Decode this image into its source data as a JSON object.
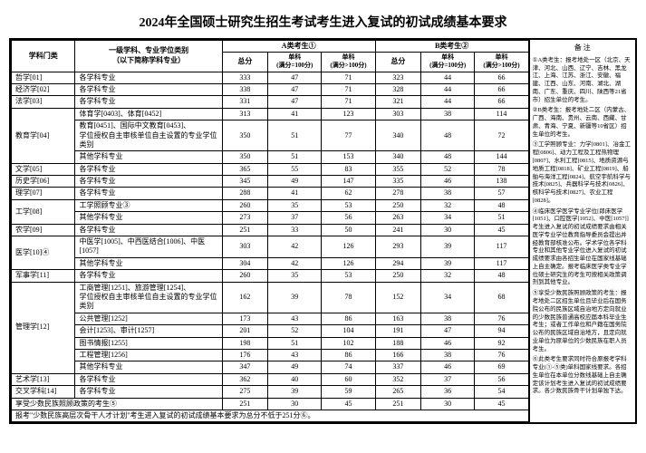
{
  "title": "2024年全国硕士研究生招生考试考生进入复试的初试成绩基本要求",
  "header": {
    "col_category": "学科门类",
    "col_major": "一级学科、专业学位类别\n（以下简称学科专业）",
    "groupA": "A类考生①",
    "groupB": "B类考生②",
    "total": "总分",
    "single1": "单科\n(满分=100分)",
    "single2": "单科\n(满分>100分)",
    "remarks": "备 注"
  },
  "rows": [
    {
      "cat": "哲学[01]",
      "major": "各学科专业",
      "a": [
        333,
        47,
        71
      ],
      "b": [
        323,
        44,
        66
      ]
    },
    {
      "cat": "经济学[02]",
      "major": "各学科专业",
      "a": [
        338,
        47,
        71
      ],
      "b": [
        328,
        44,
        66
      ]
    },
    {
      "cat": "法学[03]",
      "major": "各学科专业",
      "a": [
        331,
        47,
        71
      ],
      "b": [
        321,
        44,
        66
      ]
    },
    {
      "cat": "教育学[04]",
      "sub": [
        {
          "major": "体育学[0403]、体育[0452]",
          "a": [
            313,
            41,
            123
          ],
          "b": [
            303,
            38,
            114
          ]
        },
        {
          "major": "教育[0451]、国际中文教育[0453]、\n学位授权自主审核单位自主设置的专业学位类别",
          "a": [
            350,
            51,
            77
          ],
          "b": [
            340,
            48,
            72
          ]
        },
        {
          "major": "其他学科专业",
          "a": [
            350,
            51,
            153
          ],
          "b": [
            340,
            48,
            144
          ]
        }
      ]
    },
    {
      "cat": "文学[05]",
      "major": "各学科专业",
      "a": [
        365,
        55,
        83
      ],
      "b": [
        355,
        52,
        78
      ]
    },
    {
      "cat": "历史学[06]",
      "major": "各学科专业",
      "a": [
        345,
        49,
        147
      ],
      "b": [
        335,
        46,
        138
      ]
    },
    {
      "cat": "理学[07]",
      "major": "各学科专业",
      "a": [
        288,
        41,
        62
      ],
      "b": [
        278,
        38,
        57
      ]
    },
    {
      "cat": "工学[08]",
      "sub": [
        {
          "major": "工学照顾专业③",
          "a": [
            260,
            35,
            53
          ],
          "b": [
            250,
            32,
            48
          ]
        },
        {
          "major": "其他学科专业",
          "a": [
            273,
            37,
            56
          ],
          "b": [
            263,
            34,
            51
          ]
        }
      ]
    },
    {
      "cat": "农学[09]",
      "major": "各学科专业",
      "a": [
        251,
        33,
        50
      ],
      "b": [
        241,
        30,
        45
      ]
    },
    {
      "cat": "医学[10]④",
      "sub": [
        {
          "major": "中医学[1005]、中西医结合[1006]、中医[1057]",
          "a": [
            303,
            42,
            126
          ],
          "b": [
            293,
            39,
            117
          ]
        },
        {
          "major": "其他学科专业",
          "a": [
            304,
            42,
            126
          ],
          "b": [
            294,
            39,
            117
          ]
        }
      ]
    },
    {
      "cat": "军事学[11]",
      "major": "各学科专业",
      "a": [
        260,
        35,
        53
      ],
      "b": [
        250,
        32,
        48
      ]
    },
    {
      "cat": "管理学[12]",
      "sub": [
        {
          "major": "工商管理[1251]、旅游管理[1254]、\n学位授权自主审核单位自主设置的专业学位类别",
          "a": [
            162,
            39,
            78
          ],
          "b": [
            152,
            34,
            68
          ]
        },
        {
          "major": "公共管理[1252]",
          "a": [
            173,
            43,
            86
          ],
          "b": [
            163,
            38,
            76
          ]
        },
        {
          "major": "会计[1253]、审计[1257]",
          "a": [
            201,
            52,
            104
          ],
          "b": [
            191,
            47,
            94
          ]
        },
        {
          "major": "图书情报[1255]",
          "a": [
            198,
            51,
            102
          ],
          "b": [
            188,
            46,
            92
          ]
        },
        {
          "major": "工程管理[1256]",
          "a": [
            176,
            43,
            86
          ],
          "b": [
            166,
            38,
            76
          ]
        },
        {
          "major": "其他学科专业",
          "a": [
            347,
            49,
            74
          ],
          "b": [
            337,
            46,
            69
          ]
        }
      ]
    },
    {
      "cat": "艺术学[13]",
      "major": "各学科专业",
      "a": [
        362,
        40,
        60
      ],
      "b": [
        352,
        37,
        56
      ]
    },
    {
      "cat": "交叉学科[14]",
      "major": "各学科专业",
      "a": [
        275,
        39,
        59
      ],
      "b": [
        265,
        36,
        54
      ]
    },
    {
      "cat": "享受少数民族照顾政策的考生⑤",
      "major": "",
      "a": [
        251,
        30,
        45
      ],
      "b": [
        251,
        30,
        45
      ]
    }
  ],
  "footnote": "报考\"少数民族高层次骨干人才计划\"考生进入复试的初试成绩基本要求为总分不低于251分⑥。",
  "notes": [
    "①A类考生：报考地处一区（北京、天津、河北、山西、辽宁、吉林、黑龙江、上海、江苏、浙江、安徽、福建、江西、山东、河南、湖北、湖南、广东、重庆、四川、陕西等21省市）招生单位的考生。",
    "②B类考生：报考地处二区（内蒙古、广西、海南、贵州、云南、西藏、甘肃、青海、宁夏、新疆等10省区）招生单位的考生。",
    "③工学照顾专业：力学[0801]、冶金工程[0806]、动力工程及工程热物理[0807]、水利工程[0815]、地质资源与地质工程[0818]、矿业工程[0819]、船舶与海洋工程[0824]、航空宇航科学与技术[0825]、兵器科学与技术[0826]、核科学与技术[0827]、农业工程[0828]。",
    "④临床医学医学专业学位[郎床医学[1051]、口腔医学[1052]、中医[1057]]考生进入复试的初试成绩要求由相关医学专业学位教育指导委员会提出并经教育部核准公布。学术学位各学科专业和其他专业学位进入复试的初试成绩要求由各招生单位在国家线基础上自主确定。报考临床医学类专业学位硕士研究生的考生可按相关政策调剂到其他专业。",
    "⑤享受少数民族照顾政策的考生：报考地处二区招生单位且毕业后在国务院公布的民族区域自治地方定向就业的少数民族普通高校应届本科毕业生考生；或者工作单位和户籍在国务院公布的民族区域自治地方，且定向就业单位为原单位的少数民族在职人员考生。",
    "⑥此类考生要求同时符合原报考学科专业(①-⑤类)单科国家线要求。各招生单位在本单位分数线基础上自主确定该计划考生进入复试的初试成绩要求。各少数民族骨干计划单独下达。"
  ]
}
